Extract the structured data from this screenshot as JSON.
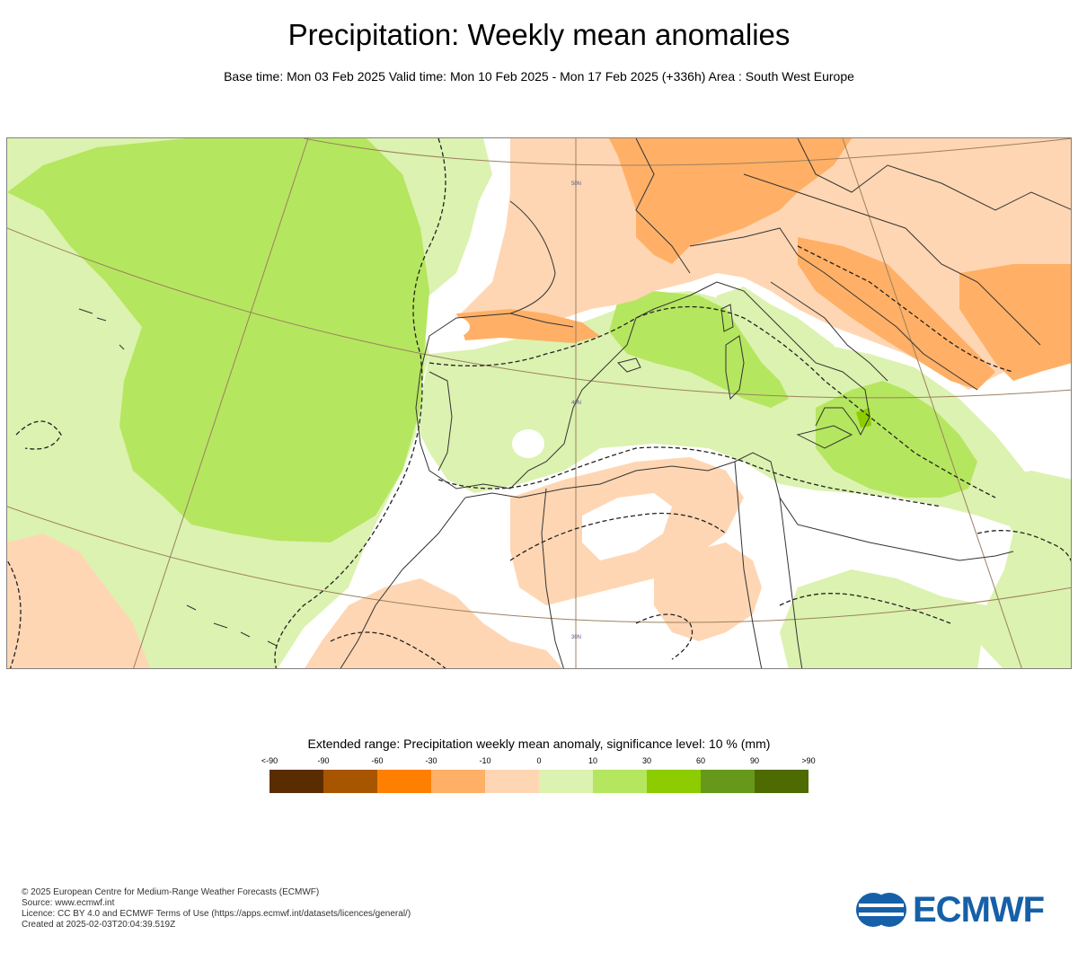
{
  "title": "Precipitation: Weekly mean anomalies",
  "subtitle": "Base time: Mon 03 Feb 2025 Valid time: Mon 10 Feb 2025 - Mon 17 Feb 2025 (+336h) Area : South West Europe",
  "map": {
    "grid_labels": {
      "lat50": "50N",
      "lat40": "40N",
      "lat30": "30N"
    }
  },
  "legend": {
    "title": "Extended range: Precipitation weekly mean anomaly, significance level: 10 % (mm)",
    "labels": [
      "<-90",
      "-90",
      "-60",
      "-30",
      "-10",
      "0",
      "10",
      "30",
      "60",
      "90",
      ">90"
    ],
    "colors": [
      "#5a2d00",
      "#a85500",
      "#ff7f00",
      "#ffb066",
      "#ffd6b3",
      "#dcf2b0",
      "#b5e65f",
      "#8ccc00",
      "#66991a",
      "#4d6b00"
    ]
  },
  "footer": {
    "line1": "© 2025 European Centre for Medium-Range Weather Forecasts (ECMWF)",
    "line2": "Source: www.ecmwf.int",
    "line3": "Licence: CC BY 4.0 and ECMWF Terms of Use (https://apps.ecmwf.int/datasets/licences/general/)",
    "line4": "Created at 2025-02-03T20:04:39.519Z"
  },
  "logo": {
    "text": "ECMWF",
    "icon": "ecmwf-logo-icon",
    "color": "#1560a8"
  },
  "colors": {
    "light_green": "#dcf2b0",
    "mid_green": "#b5e65f",
    "bright_green": "#8ccc00",
    "light_orange": "#ffd6b3",
    "mid_orange": "#ffb066",
    "coast": "#333333",
    "grid": "#9c8060"
  }
}
